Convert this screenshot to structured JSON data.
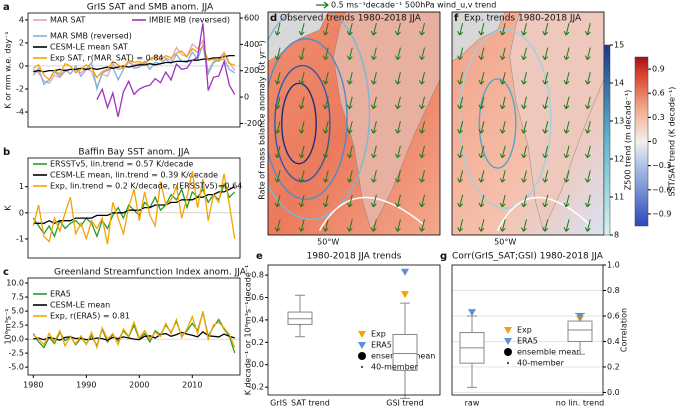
{
  "chart_data": [
    {
      "type": "line",
      "label": "a",
      "title": "GrIS SAT and SMB anom. JJA",
      "ylabel": "K or mm w.e. day⁻¹",
      "y2label": "Rate of mass balance anomaly (Gt yr⁻¹)",
      "x": [
        1980,
        1981,
        1982,
        1983,
        1984,
        1985,
        1986,
        1987,
        1988,
        1989,
        1990,
        1991,
        1992,
        1993,
        1994,
        1995,
        1996,
        1997,
        1998,
        1999,
        2000,
        2001,
        2002,
        2003,
        2004,
        2005,
        2006,
        2007,
        2008,
        2009,
        2010,
        2011,
        2012,
        2013,
        2014,
        2015,
        2016,
        2017,
        2018
      ],
      "xlim": [
        1979,
        2019
      ],
      "ylim": [
        -5.3,
        4.6
      ],
      "yticks": [
        -4,
        -2,
        0,
        2,
        4
      ],
      "y2lim": [
        -227,
        638
      ],
      "y2ticks": [
        -200,
        0,
        200,
        400,
        600
      ],
      "series": [
        {
          "name": "MAR SAT",
          "color": "#e8a0b4",
          "values": [
            -0.3,
            -0.6,
            -1.3,
            -1.5,
            -0.8,
            -1.0,
            -0.5,
            -0.3,
            -0.4,
            -0.6,
            -0.2,
            -0.5,
            -1.8,
            -0.7,
            -0.9,
            0.2,
            -0.3,
            -0.2,
            0.3,
            0.1,
            0.2,
            0.3,
            0.6,
            0.9,
            0.8,
            0.7,
            0.5,
            1.6,
            1.0,
            0.8,
            1.9,
            1.5,
            2.2,
            -0.5,
            0.4,
            0.6,
            1.2,
            0.3,
            -0.4
          ]
        },
        {
          "name": "MAR SMB (reversed)",
          "color": "#7fb1e0",
          "values": [
            -0.8,
            -0.2,
            -1.6,
            -1.2,
            -0.5,
            -0.9,
            -0.3,
            -0.7,
            0.0,
            -0.9,
            -0.3,
            0.3,
            -2.0,
            -0.6,
            -0.4,
            -0.1,
            -1.2,
            -0.3,
            0.5,
            -0.2,
            -0.1,
            0.4,
            -0.3,
            0.3,
            0.2,
            0.6,
            0.2,
            1.0,
            0.4,
            0.3,
            1.2,
            0.6,
            1.8,
            -0.7,
            0.3,
            0.5,
            0.6,
            -0.3,
            -0.6
          ]
        },
        {
          "name": "CESM-LE mean SAT",
          "color": "#000000",
          "values": [
            -0.5,
            -0.4,
            -0.5,
            -0.4,
            -0.4,
            -0.3,
            -0.4,
            -0.3,
            -0.3,
            -0.2,
            -0.3,
            -0.2,
            -0.3,
            -0.2,
            -0.1,
            -0.2,
            -0.1,
            0.0,
            -0.1,
            0.0,
            0.1,
            0.1,
            0.2,
            0.1,
            0.2,
            0.3,
            0.3,
            0.4,
            0.4,
            0.4,
            0.5,
            0.5,
            0.6,
            0.6,
            0.7,
            0.7,
            0.8,
            0.9,
            0.9
          ]
        },
        {
          "name": "Exp SAT, r(MAR_SAT) = 0.84",
          "color": "#f5a300",
          "values": [
            -0.2,
            0.1,
            -0.8,
            -1.2,
            -0.4,
            -0.7,
            0.2,
            0.0,
            -0.6,
            -0.3,
            0.1,
            -0.2,
            -1.0,
            -0.5,
            -0.3,
            0.4,
            0.1,
            -0.2,
            0.5,
            0.3,
            0.4,
            0.2,
            0.6,
            0.7,
            0.5,
            0.9,
            0.7,
            1.1,
            1.3,
            0.8,
            1.5,
            1.2,
            1.7,
            0.5,
            0.6,
            0.4,
            1.0,
            0.2,
            0.1
          ]
        },
        {
          "name": "IMBIE MB (reversed)",
          "color": "#a030c0",
          "axis": "y2",
          "values": [
            null,
            null,
            null,
            null,
            null,
            null,
            null,
            null,
            null,
            null,
            null,
            null,
            -20,
            60,
            -80,
            30,
            -150,
            40,
            120,
            20,
            60,
            80,
            90,
            140,
            110,
            190,
            130,
            250,
            210,
            220,
            280,
            300,
            560,
            50,
            150,
            160,
            270,
            90,
            20
          ]
        }
      ]
    },
    {
      "type": "line",
      "label": "b",
      "title": "Baffin Bay SST anom. JJA",
      "ylabel": "K",
      "x": [
        1980,
        1981,
        1982,
        1983,
        1984,
        1985,
        1986,
        1987,
        1988,
        1989,
        1990,
        1991,
        1992,
        1993,
        1994,
        1995,
        1996,
        1997,
        1998,
        1999,
        2000,
        2001,
        2002,
        2003,
        2004,
        2005,
        2006,
        2007,
        2008,
        2009,
        2010,
        2011,
        2012,
        2013,
        2014,
        2015,
        2016,
        2017,
        2018
      ],
      "xlim": [
        1979,
        2019
      ],
      "ylim": [
        -1.73,
        2.1
      ],
      "yticks": [
        -1,
        0,
        1
      ],
      "series": [
        {
          "name": "ERSSTv5, lin.trend = 0.57 K/decade",
          "color": "#2a9a2a",
          "values": [
            -0.2,
            -0.5,
            -0.8,
            -0.5,
            -0.9,
            -0.3,
            -0.6,
            -0.4,
            -0.3,
            -0.5,
            -0.2,
            -0.4,
            -0.9,
            -0.3,
            -0.6,
            -0.1,
            0.2,
            -0.2,
            0.3,
            0.1,
            -0.1,
            0.4,
            0.2,
            0.6,
            0.1,
            0.3,
            0.7,
            0.5,
            0.9,
            0.2,
            0.8,
            0.6,
            0.9,
            0.4,
            0.7,
            0.5,
            1.1,
            0.6,
            0.8
          ]
        },
        {
          "name": "CESM-LE mean, lin.trend = 0.39 K/decade",
          "color": "#000000",
          "values": [
            -0.4,
            -0.4,
            -0.4,
            -0.3,
            -0.4,
            -0.3,
            -0.3,
            -0.3,
            -0.2,
            -0.2,
            -0.2,
            -0.2,
            -0.1,
            -0.1,
            -0.1,
            0.0,
            0.0,
            0.0,
            0.1,
            0.1,
            0.1,
            0.2,
            0.2,
            0.3,
            0.3,
            0.3,
            0.4,
            0.4,
            0.5,
            0.5,
            0.5,
            0.6,
            0.6,
            0.7,
            0.7,
            0.8,
            0.8,
            0.9,
            1.0
          ]
        },
        {
          "name": "Exp, lin.trend = 0.2 K/decade, r(ERSSTv5)=0.64",
          "color": "#f5a300",
          "values": [
            -0.5,
            0.3,
            -0.9,
            -1.1,
            -0.2,
            -0.7,
            0.0,
            0.6,
            -0.8,
            -0.4,
            -1.0,
            -0.3,
            -0.6,
            -0.2,
            -1.2,
            0.4,
            -0.2,
            -0.8,
            0.2,
            0.9,
            -0.3,
            0.8,
            -0.1,
            -0.5,
            1.2,
            0.3,
            0.5,
            1.0,
            -0.2,
            0.6,
            1.6,
            0.2,
            1.3,
            -0.3,
            0.7,
            0.4,
            1.5,
            0.3,
            -1.0
          ]
        }
      ]
    },
    {
      "type": "line",
      "label": "c",
      "title": "Greenland Streamfunction Index anom. JJA",
      "ylabel": "10⁶m³s⁻¹",
      "x": [
        1980,
        1981,
        1982,
        1983,
        1984,
        1985,
        1986,
        1987,
        1988,
        1989,
        1990,
        1991,
        1992,
        1993,
        1994,
        1995,
        1996,
        1997,
        1998,
        1999,
        2000,
        2001,
        2002,
        2003,
        2004,
        2005,
        2006,
        2007,
        2008,
        2009,
        2010,
        2011,
        2012,
        2013,
        2014,
        2015,
        2016,
        2017,
        2018
      ],
      "xlim": [
        1979,
        2019
      ],
      "xticks": [
        1980,
        1990,
        2000,
        2010
      ],
      "ylim": [
        -6.4,
        10.9
      ],
      "yticks": [
        {
          "value": -5,
          "label": "-5.0"
        },
        -2.5,
        {
          "value": 0,
          "label": "0.0"
        },
        2.5,
        {
          "value": 5,
          "label": "5.0"
        },
        7.5,
        {
          "value": 10,
          "label": "10.0"
        }
      ],
      "series": [
        {
          "name": "ERA5",
          "color": "#2a9a2a",
          "values": [
            1.0,
            -0.5,
            -1.5,
            0.3,
            -0.8,
            1.2,
            -0.3,
            0.5,
            -1.0,
            0.2,
            -0.8,
            0.6,
            -1.2,
            1.8,
            -0.5,
            0.8,
            -0.3,
            1.5,
            0.4,
            2.5,
            0.0,
            1.0,
            -0.5,
            1.5,
            0.8,
            2.5,
            1.2,
            3.2,
            0.5,
            1.5,
            2.8,
            1.5,
            4.8,
            0.5,
            2.2,
            3.5,
            1.8,
            0.5,
            -2.5
          ]
        },
        {
          "name": "CESM-LE mean",
          "color": "#000000",
          "values": [
            0.0,
            0.2,
            -0.1,
            0.3,
            0.1,
            -0.2,
            0.3,
            0.4,
            0.1,
            0.2,
            -0.1,
            0.0,
            0.2,
            0.1,
            -0.2,
            0.3,
            0.1,
            0.4,
            0.2,
            0.0,
            -0.1,
            0.5,
            0.6,
            0.2,
            0.8,
            1.0,
            0.5,
            0.8,
            1.2,
            0.9,
            0.7,
            0.4,
            1.3,
            0.6,
            0.5,
            0.4,
            0.9,
            0.5,
            0.2
          ]
        },
        {
          "name": "Exp, r(ERA5) = 0.81",
          "color": "#f5a300",
          "values": [
            0.8,
            0.0,
            -1.0,
            1.0,
            -0.5,
            1.5,
            -1.2,
            0.4,
            -0.8,
            0.6,
            -1.0,
            1.2,
            -1.5,
            2.0,
            0.0,
            1.0,
            -1.0,
            1.8,
            0.5,
            3.0,
            0.2,
            1.5,
            0.0,
            1.2,
            0.5,
            2.8,
            1.0,
            3.5,
            0.3,
            1.8,
            4.0,
            1.0,
            5.0,
            0.0,
            2.5,
            3.0,
            2.0,
            0.8,
            -1.5
          ]
        }
      ]
    },
    {
      "type": "map",
      "label": "d",
      "title": "Observed trends 1980-2018 JJA",
      "lon_label": "50°W",
      "annotation": "0.5 ms⁻¹decade⁻¹ 500hPa wind_u,v trend"
    },
    {
      "type": "map",
      "label": "f",
      "title": "Exp. trends 1980-2018 JJA",
      "lon_label": "50°W"
    },
    {
      "type": "box",
      "label": "e",
      "title": "1980-2018 JJA trends",
      "ylabel": "K decade⁻¹ or 10⁶m³s⁻¹decade⁻¹",
      "categories": [
        "GrIS_SAT trend",
        "GSI trend"
      ],
      "ylim": [
        -0.27,
        0.89
      ],
      "yticks": [
        -0.2,
        {
          "value": 0,
          "label": "0.0"
        },
        0.2,
        0.4,
        0.6,
        0.8
      ],
      "series": [
        {
          "name": "Exp",
          "color": "#f5a300",
          "marker": "triangle",
          "values": [
            0.37,
            0.63
          ]
        },
        {
          "name": "ERA5",
          "color": "#5b8fd6",
          "marker": "triangle",
          "values": [
            0.39,
            0.83
          ]
        },
        {
          "name": "ensemble mean",
          "color": "#000000",
          "marker": "circle",
          "values": [
            0.41,
            0.09
          ]
        },
        {
          "name": "40-member",
          "color": "#555555",
          "marker": "dot",
          "box": [
            {
              "low": 0.25,
              "q1": 0.36,
              "median": 0.41,
              "q3": 0.47,
              "high": 0.62
            },
            {
              "low": -0.3,
              "q1": -0.05,
              "median": 0.1,
              "q3": 0.27,
              "high": 0.55
            }
          ]
        }
      ]
    },
    {
      "type": "box",
      "label": "g",
      "title": "Corr(GrIS_SAT;GSI) 1980-2018 JJA",
      "ylabel": "Correlation",
      "grid": true,
      "categories": [
        "raw",
        "no lin. trend"
      ],
      "ylim": [
        -0.02,
        1.0
      ],
      "yticks": [
        {
          "value": 0,
          "label": "0.0"
        },
        0.2,
        0.4,
        0.6,
        0.8,
        {
          "value": 1,
          "label": "1.0"
        }
      ],
      "series": [
        {
          "name": "Exp",
          "color": "#f5a300",
          "marker": "triangle",
          "values": [
            0.42,
            0.58
          ]
        },
        {
          "name": "ERA5",
          "color": "#5b8fd6",
          "marker": "triangle",
          "values": [
            0.63,
            0.6
          ]
        },
        {
          "name": "ensemble mean",
          "color": "#000000",
          "marker": "circle",
          "values": [
            0.34,
            0.48
          ]
        },
        {
          "name": "40-member",
          "color": "#555555",
          "marker": "dot",
          "box": [
            {
              "low": 0.04,
              "q1": 0.23,
              "median": 0.35,
              "q3": 0.47,
              "high": 0.6
            },
            {
              "low": 0.3,
              "q1": 0.4,
              "median": 0.49,
              "q3": 0.56,
              "high": 0.62
            }
          ]
        }
      ]
    },
    {
      "type": "colorbar",
      "label": "Z500 trend (m decade⁻¹)",
      "ticks": [
        8,
        11,
        12,
        13,
        14,
        15
      ]
    },
    {
      "type": "colorbar",
      "label": "SST/SAT trend (K decade⁻¹)",
      "lim": [
        -1.05,
        1.05
      ],
      "ticks": [
        {
          "value": -0.9,
          "label": "−0.9"
        },
        {
          "value": -0.6,
          "label": "−0.6"
        },
        {
          "value": -0.3,
          "label": "−0.3"
        },
        0,
        0.3,
        0.6,
        0.9
      ]
    }
  ]
}
